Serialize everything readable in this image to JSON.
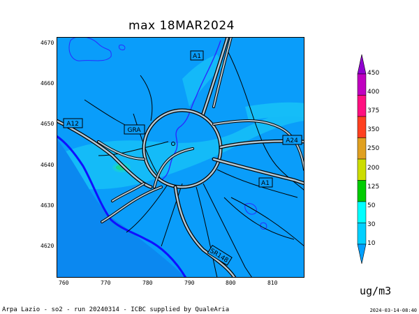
{
  "title": "max 18MAR2024",
  "x_axis": {
    "ticks": [
      "760",
      "770",
      "780",
      "790",
      "800",
      "810"
    ]
  },
  "y_axis": {
    "ticks": [
      "4670",
      "4660",
      "4650",
      "4640",
      "4630",
      "4620"
    ]
  },
  "road_labels": {
    "a1_north": "A1",
    "a12": "A12",
    "gra": "GRA",
    "a24": "A24",
    "a1_south": "A1",
    "sr148": "SR148"
  },
  "legend": {
    "unit": "ug/m3",
    "levels": [
      "10",
      "30",
      "50",
      "125",
      "200",
      "250",
      "350",
      "375",
      "400",
      "450"
    ],
    "colors": [
      "#00a0ff",
      "#00d0ff",
      "#00ffff",
      "#00cc00",
      "#ccdd00",
      "#e0a020",
      "#ff4020",
      "#ff1080",
      "#c000c0",
      "#9000d0"
    ]
  },
  "footer": {
    "left": "Arpa Lazio - so2 - run 20240314 - ICBC supplied by QualeAria",
    "right": "2024-03-14-08:40"
  },
  "colors": {
    "base_field": "#0a9dfa",
    "low_field": "#15bdf8",
    "hot_spot": "#1ed84a",
    "coast": "#1010ff",
    "road_fill": "#b4c8d4",
    "road_outline": "#000000"
  }
}
